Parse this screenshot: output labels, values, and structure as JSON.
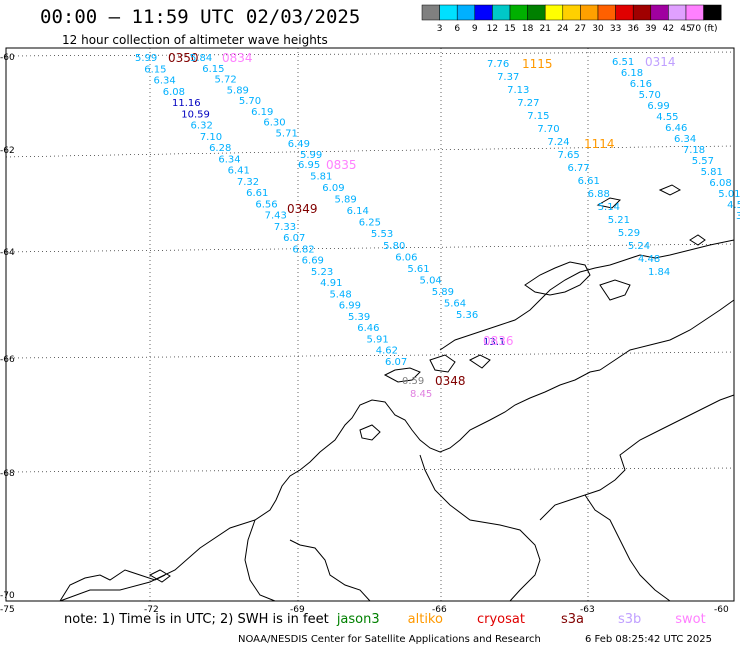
{
  "title": "00:00 – 11:59 UTC 02/03/2025",
  "subtitle": "12 hour collection of altimeter wave heights",
  "colorbar": {
    "labels": [
      "3",
      "6",
      "9",
      "12",
      "15",
      "18",
      "21",
      "24",
      "27",
      "30",
      "33",
      "36",
      "39",
      "42",
      "45",
      "70 (ft)"
    ],
    "colors": [
      "#808080",
      "#00e0ff",
      "#00b0ff",
      "#0000ff",
      "#00c8c8",
      "#00b000",
      "#008000",
      "#ffff00",
      "#ffd000",
      "#ffa000",
      "#ff6000",
      "#e00000",
      "#a00000",
      "#a000a0",
      "#e0a0ff",
      "#ff80ff",
      "#000000"
    ]
  },
  "axes": {
    "lat_labels": [
      "-60",
      "-62",
      "-64",
      "-66",
      "-68",
      "-70"
    ],
    "lon_labels": [
      "-75",
      "-72",
      "-69",
      "-66",
      "-63",
      "-60"
    ]
  },
  "tracks": [
    {
      "time_label": "0350",
      "time_color": "#800000",
      "values": [
        "5.99",
        "6.15",
        "6.34",
        "6.08",
        "11.16",
        "10.59",
        "6.32",
        "7.10",
        "6.28",
        "6.34",
        "6.41",
        "7.32",
        "6.61",
        "6.56",
        "7.43",
        "7.33",
        "6.07",
        "6.82",
        "6.69",
        "5.23",
        "4.91",
        "5.48",
        "6.99",
        "5.39",
        "6.46",
        "5.91",
        "4.62",
        "6.07"
      ]
    },
    {
      "time_label": "0834",
      "time_color": "#ff80ff",
      "values": [
        "5.84",
        "6.15",
        "5.72",
        "5.89",
        "5.70",
        "6.19",
        "6.30",
        "5.71",
        "6.49",
        "5.99"
      ]
    },
    {
      "time_label": "0835",
      "time_color": "#ff80ff",
      "values": [
        "6.95",
        "5.81",
        "6.09",
        "5.89",
        "6.14",
        "6.25",
        "5.53",
        "5.80",
        "6.06",
        "5.61",
        "5.04",
        "5.89",
        "5.64",
        "5.36"
      ]
    },
    {
      "time_label": "0349",
      "time_color": "#800000",
      "values": []
    },
    {
      "time_label": "0836",
      "time_color": "#ff80ff",
      "values": [
        "13.1"
      ]
    },
    {
      "time_label": "0348",
      "time_color": "#800000",
      "values": [
        "0.59",
        "8.45"
      ]
    },
    {
      "time_label": "1115",
      "time_color": "#ff9900",
      "values": [
        "7.76",
        "7.37",
        "7.13",
        "7.27",
        "7.15",
        "7.70",
        "7.24",
        "7.65",
        "6.77",
        "6.61",
        "6.88",
        "5.14",
        "5.21",
        "5.29",
        "5.24",
        "4.48",
        "1.84"
      ]
    },
    {
      "time_label": "1114",
      "time_color": "#ff9900",
      "values": []
    },
    {
      "time_label": "0314",
      "time_color": "#c0a0ff",
      "values": [
        "6.51",
        "6.18",
        "6.16",
        "5.70",
        "6.99",
        "4.55",
        "6.46",
        "6.34",
        "7.18",
        "5.57",
        "5.81",
        "6.08",
        "5.01",
        "4.5",
        "3."
      ]
    }
  ],
  "note": {
    "prefix": "note: 1) Time is in UTC; 2) SWH is in feet",
    "missions": [
      {
        "name": "jason3",
        "color": "#008000"
      },
      {
        "name": "altiko",
        "color": "#ff9900"
      },
      {
        "name": "cryosat",
        "color": "#e00000"
      },
      {
        "name": "s3a",
        "color": "#800000"
      },
      {
        "name": "s3b",
        "color": "#c0a0ff"
      },
      {
        "name": "swot",
        "color": "#ff80ff"
      }
    ]
  },
  "credit": "NOAA/NESDIS Center for Satellite Applications and Research",
  "timestamp": "6 Feb 08:25:42 UTC 2025"
}
